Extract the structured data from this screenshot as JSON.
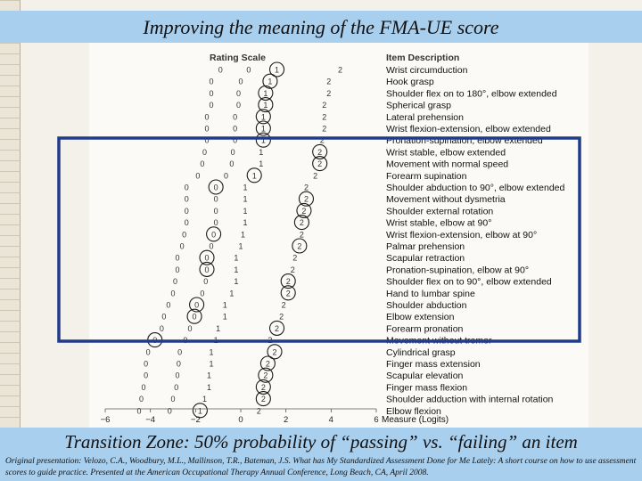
{
  "title": "Improving the meaning of the FMA-UE score",
  "zone_caption": "Transition Zone: 50% probability of “passing” vs. “failing” an item",
  "citation": "Original presentation: Velozo, C.A., Woodbury, M.L., Mallinson, T.R., Bateman, J.S. What has My Standardized Assessment Done for Me Lately: A short course on how to use assessment scores to guide practice. Presented at the American Occupational Therapy Annual Conference, Long Beach, CA, April 2008.",
  "colors": {
    "band": "#a9cfee",
    "zone_box": "#1f3c8c",
    "circle": "#1a1a1a"
  },
  "chart_data": {
    "type": "scatter",
    "scale_header": "Rating Scale",
    "items_header": "Item Description",
    "xlabel": "Measure (Logits)",
    "xlim": [
      -6,
      6
    ],
    "xticks": [
      -6,
      -4,
      -2,
      0,
      2,
      4,
      6
    ],
    "transition_zone_x": [
      -2.9,
      5.3
    ],
    "items": [
      {
        "label": "Wrist circumduction",
        "p0": -0.9,
        "p1": 1.6,
        "p2": 4.4
      },
      {
        "label": "Hook grasp",
        "p0": -1.3,
        "p1": 1.3,
        "p2": 3.9
      },
      {
        "label": "Shoulder flex on to 180°, elbow extended",
        "p0": -1.3,
        "p1": 1.1,
        "p2": 3.9
      },
      {
        "label": "Spherical grasp",
        "p0": -1.3,
        "p1": 1.1,
        "p2": 3.7
      },
      {
        "label": "Lateral prehension",
        "p0": -1.5,
        "p1": 1.0,
        "p2": 3.7
      },
      {
        "label": "Wrist flexion-extension, elbow extended",
        "p0": -1.5,
        "p1": 1.0,
        "p2": 3.7
      },
      {
        "label": "Pronation-supination, elbow extended",
        "p0": -1.5,
        "p1": 1.0,
        "p2": 3.6
      },
      {
        "label": "Wrist stable, elbow extended",
        "p0": -1.6,
        "p1": 0.9,
        "p2": 3.5
      },
      {
        "label": "Movement with normal speed",
        "p0": -1.7,
        "p1": 0.9,
        "p2": 3.5
      },
      {
        "label": "Forearm supination",
        "p0": -1.9,
        "p1": 0.6,
        "p2": 3.3
      },
      {
        "label": "Shoulder abduction to 90°, elbow extended",
        "p0": -2.4,
        "p1": 0.2,
        "p2": 2.9
      },
      {
        "label": "Movement without dysmetria",
        "p0": -2.4,
        "p1": 0.2,
        "p2": 2.9
      },
      {
        "label": "Shoulder external rotation",
        "p0": -2.4,
        "p1": 0.2,
        "p2": 2.8
      },
      {
        "label": "Wrist stable, elbow at 90°",
        "p0": -2.4,
        "p1": 0.2,
        "p2": 2.7
      },
      {
        "label": "Wrist flexion-extension, elbow at 90°",
        "p0": -2.5,
        "p1": 0.1,
        "p2": 2.7
      },
      {
        "label": "Palmar prehension",
        "p0": -2.6,
        "p1": 0.0,
        "p2": 2.6
      },
      {
        "label": "Scapular retraction",
        "p0": -2.8,
        "p1": -0.2,
        "p2": 2.4
      },
      {
        "label": "Pronation-supination, elbow at 90°",
        "p0": -2.8,
        "p1": -0.2,
        "p2": 2.3
      },
      {
        "label": "Shoulder flex on to 90°, elbow extended",
        "p0": -2.9,
        "p1": -0.2,
        "p2": 2.1
      },
      {
        "label": "Hand to lumbar spine",
        "p0": -3.0,
        "p1": -0.4,
        "p2": 2.1
      },
      {
        "label": "Shoulder abduction",
        "p0": -3.2,
        "p1": -0.7,
        "p2": 1.9
      },
      {
        "label": "Elbow extension",
        "p0": -3.4,
        "p1": -0.7,
        "p2": 1.8
      },
      {
        "label": "Forearm pronation",
        "p0": -3.5,
        "p1": -1.0,
        "p2": 1.6
      },
      {
        "label": "Movement without tremor",
        "p0": -3.8,
        "p1": -1.1,
        "p2": 1.3
      },
      {
        "label": "Cylindrical grasp",
        "p0": -4.1,
        "p1": -1.3,
        "p2": 1.5
      },
      {
        "label": "Finger mass extension",
        "p0": -4.2,
        "p1": -1.3,
        "p2": 1.2
      },
      {
        "label": "Scapular elevation",
        "p0": -4.2,
        "p1": -1.4,
        "p2": 1.1
      },
      {
        "label": "Finger mass flexion",
        "p0": -4.3,
        "p1": -1.4,
        "p2": 1.0
      },
      {
        "label": "Shoulder adduction with internal rotation",
        "p0": -4.4,
        "p1": -1.6,
        "p2": 1.0
      },
      {
        "label": "Elbow flexion",
        "p0": -4.5,
        "p1": -1.8,
        "p2": 0.8
      }
    ],
    "circled": [
      [
        0,
        2
      ],
      [
        1,
        2
      ],
      [
        2,
        2
      ],
      [
        3,
        2
      ],
      [
        4,
        2
      ],
      [
        5,
        2
      ],
      [
        6,
        2
      ],
      [
        7,
        3
      ],
      [
        8,
        3
      ],
      [
        9,
        2
      ],
      [
        10,
        1
      ],
      [
        11,
        3
      ],
      [
        12,
        3
      ],
      [
        13,
        3
      ],
      [
        14,
        1
      ],
      [
        15,
        3
      ],
      [
        16,
        1
      ],
      [
        17,
        1
      ],
      [
        18,
        3
      ],
      [
        19,
        3
      ],
      [
        20,
        1
      ],
      [
        21,
        1
      ],
      [
        22,
        3
      ],
      [
        23,
        0
      ],
      [
        24,
        3
      ],
      [
        25,
        3
      ],
      [
        26,
        3
      ],
      [
        27,
        3
      ],
      [
        28,
        3
      ],
      [
        29,
        2
      ]
    ]
  }
}
